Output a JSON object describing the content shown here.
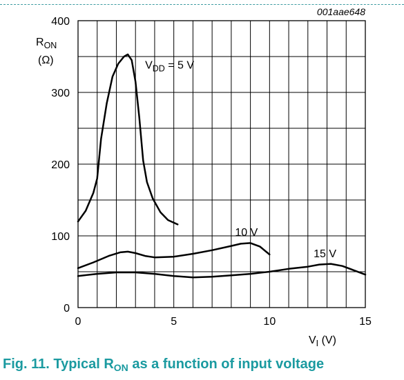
{
  "chart_data": {
    "type": "line",
    "figure_id": "001aae648",
    "ylabel": {
      "main": "R",
      "sub": "ON",
      "unit": "(Ω)"
    },
    "xlabel": {
      "main": "V",
      "sub": "I",
      "unit": " (V)"
    },
    "xlim": [
      0,
      15
    ],
    "ylim": [
      0,
      400
    ],
    "x_ticks": [
      0,
      5,
      10,
      15
    ],
    "y_ticks": [
      0,
      100,
      200,
      300,
      400
    ],
    "grid": true,
    "series": [
      {
        "name": "VDD = 5 V",
        "label": {
          "pre": "V",
          "sub": "DD",
          "post": " = 5 V"
        },
        "points": [
          [
            0,
            120
          ],
          [
            0.4,
            135
          ],
          [
            0.8,
            160
          ],
          [
            1.0,
            180
          ],
          [
            1.2,
            235
          ],
          [
            1.5,
            285
          ],
          [
            1.8,
            322
          ],
          [
            2.1,
            340
          ],
          [
            2.4,
            350
          ],
          [
            2.6,
            353
          ],
          [
            2.8,
            345
          ],
          [
            3.0,
            315
          ],
          [
            3.2,
            265
          ],
          [
            3.4,
            205
          ],
          [
            3.6,
            175
          ],
          [
            3.9,
            152
          ],
          [
            4.3,
            133
          ],
          [
            4.7,
            122
          ],
          [
            5.2,
            116
          ]
        ]
      },
      {
        "name": "10 V",
        "label": {
          "pre": "10 V",
          "sub": "",
          "post": ""
        },
        "points": [
          [
            0,
            55
          ],
          [
            0.8,
            63
          ],
          [
            1.6,
            72
          ],
          [
            2.2,
            77
          ],
          [
            2.6,
            78
          ],
          [
            3.0,
            76
          ],
          [
            3.5,
            72
          ],
          [
            4.0,
            70
          ],
          [
            5.0,
            71
          ],
          [
            6.0,
            75
          ],
          [
            7.0,
            80
          ],
          [
            8.0,
            86
          ],
          [
            8.5,
            89
          ],
          [
            9.0,
            90
          ],
          [
            9.5,
            85
          ],
          [
            10.0,
            74
          ]
        ]
      },
      {
        "name": "15 V",
        "label": {
          "pre": "15 V",
          "sub": "",
          "post": ""
        },
        "points": [
          [
            0,
            44
          ],
          [
            1.0,
            47
          ],
          [
            2.0,
            49
          ],
          [
            3.0,
            49
          ],
          [
            4.0,
            47
          ],
          [
            5.0,
            44
          ],
          [
            6.0,
            42
          ],
          [
            7.0,
            43
          ],
          [
            8.0,
            45
          ],
          [
            9.0,
            47
          ],
          [
            10.0,
            50
          ],
          [
            11.0,
            54
          ],
          [
            12.0,
            57
          ],
          [
            12.6,
            60
          ],
          [
            13.2,
            61
          ],
          [
            13.8,
            58
          ],
          [
            14.4,
            52
          ],
          [
            15.0,
            46
          ]
        ]
      }
    ]
  },
  "caption": {
    "prefix": "Fig. 11.   Typical R",
    "sub": "ON",
    "suffix": " as a function of input voltage"
  }
}
